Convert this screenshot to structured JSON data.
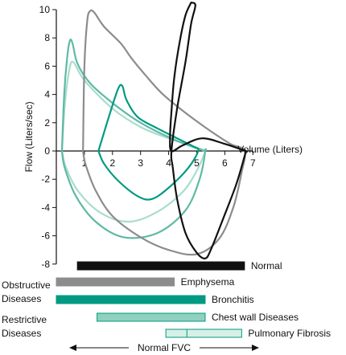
{
  "chart_data": {
    "type": "line",
    "title": "",
    "xlabel": "Volume (Liters)",
    "ylabel": "Flow (Liters/sec)",
    "xlim": [
      0,
      7
    ],
    "ylim": [
      -8,
      10
    ],
    "x_ticks": [
      1,
      2,
      3,
      4,
      5,
      6,
      7
    ],
    "y_ticks": [
      10,
      8,
      6,
      4,
      2,
      0,
      -2,
      -4,
      -6,
      -8
    ],
    "grid": false,
    "series": [
      {
        "name": "Normal",
        "color": "#111111",
        "points": [
          [
            4.8,
            10.5
          ],
          [
            4.6,
            9.6
          ],
          [
            4.4,
            7.8
          ],
          [
            4.2,
            5.2
          ],
          [
            4.1,
            2.8
          ],
          [
            4.05,
            1.0
          ],
          [
            4.1,
            0
          ],
          [
            4.5,
            0.4
          ],
          [
            5.2,
            0.9
          ],
          [
            6.0,
            0.5
          ],
          [
            6.6,
            0.1
          ],
          [
            6.75,
            0
          ],
          [
            6.7,
            -0.4
          ],
          [
            6.4,
            -2.4
          ],
          [
            5.9,
            -5.0
          ],
          [
            5.5,
            -7.0
          ],
          [
            5.3,
            -7.6
          ],
          [
            5.0,
            -7.2
          ],
          [
            4.6,
            -5.8
          ],
          [
            4.3,
            -3.4
          ],
          [
            4.15,
            -1.2
          ],
          [
            4.1,
            0
          ],
          [
            4.3,
            3.0
          ],
          [
            4.6,
            6.3
          ],
          [
            4.8,
            9.0
          ],
          [
            4.95,
            10.3
          ],
          [
            4.8,
            10.5
          ]
        ]
      },
      {
        "name": "Emphysema",
        "color": "#8c8c8c",
        "points": [
          [
            0.95,
            0
          ],
          [
            1.0,
            6.0
          ],
          [
            1.1,
            9.2
          ],
          [
            1.2,
            9.9
          ],
          [
            1.35,
            9.8
          ],
          [
            1.7,
            8.8
          ],
          [
            2.3,
            7.6
          ],
          [
            2.7,
            6.5
          ],
          [
            3.2,
            5.3
          ],
          [
            3.8,
            4.0
          ],
          [
            4.6,
            2.7
          ],
          [
            5.5,
            1.4
          ],
          [
            6.2,
            0.5
          ],
          [
            6.7,
            0
          ],
          [
            6.6,
            -1.5
          ],
          [
            6.3,
            -4.0
          ],
          [
            5.8,
            -6.2
          ],
          [
            5.0,
            -7.3
          ],
          [
            4.0,
            -7.0
          ],
          [
            3.0,
            -6.1
          ],
          [
            2.0,
            -4.6
          ],
          [
            1.4,
            -2.8
          ],
          [
            1.05,
            -1.0
          ],
          [
            0.95,
            0
          ]
        ]
      },
      {
        "name": "Bronchitis",
        "color": "#009a82",
        "points": [
          [
            1.5,
            0
          ],
          [
            1.9,
            2.6
          ],
          [
            2.2,
            4.4
          ],
          [
            2.35,
            4.6
          ],
          [
            2.5,
            3.6
          ],
          [
            2.9,
            2.4
          ],
          [
            3.6,
            1.6
          ],
          [
            4.3,
            0.9
          ],
          [
            4.9,
            0.3
          ],
          [
            5.05,
            0
          ],
          [
            4.7,
            -1.2
          ],
          [
            4.0,
            -2.6
          ],
          [
            3.4,
            -3.4
          ],
          [
            2.9,
            -3.2
          ],
          [
            2.2,
            -2.1
          ],
          [
            1.7,
            -0.9
          ],
          [
            1.5,
            0
          ]
        ]
      },
      {
        "name": "Chest wall Diseases",
        "color": "#5fb9a4",
        "points": [
          [
            0.2,
            0
          ],
          [
            0.28,
            4.0
          ],
          [
            0.38,
            6.5
          ],
          [
            0.48,
            7.8
          ],
          [
            0.58,
            7.6
          ],
          [
            0.75,
            6.2
          ],
          [
            1.2,
            4.8
          ],
          [
            2.0,
            3.4
          ],
          [
            3.0,
            2.0
          ],
          [
            4.2,
            0.8
          ],
          [
            5.2,
            0.05
          ],
          [
            5.3,
            0
          ],
          [
            5.1,
            -2.0
          ],
          [
            4.6,
            -4.2
          ],
          [
            3.6,
            -5.8
          ],
          [
            2.4,
            -6.1
          ],
          [
            1.4,
            -5.0
          ],
          [
            0.7,
            -3.2
          ],
          [
            0.3,
            -1.2
          ],
          [
            0.2,
            0
          ]
        ]
      },
      {
        "name": "Pulmonary Fibrosis",
        "color": "#aadccd",
        "points": [
          [
            0.2,
            0
          ],
          [
            0.3,
            3.2
          ],
          [
            0.45,
            5.6
          ],
          [
            0.6,
            6.3
          ],
          [
            1.0,
            5.0
          ],
          [
            2.0,
            3.0
          ],
          [
            3.0,
            1.7
          ],
          [
            4.0,
            0.9
          ],
          [
            5.2,
            0.1
          ],
          [
            5.3,
            0
          ],
          [
            5.0,
            -1.4
          ],
          [
            4.5,
            -2.9
          ],
          [
            3.6,
            -4.3
          ],
          [
            2.6,
            -5.0
          ],
          [
            1.6,
            -4.4
          ],
          [
            0.8,
            -2.9
          ],
          [
            0.35,
            -1.2
          ],
          [
            0.2,
            0
          ]
        ]
      }
    ],
    "fvc_bars": [
      {
        "label": "Normal",
        "start": 0.75,
        "end": 6.7,
        "fill": "#111111",
        "stroke": "#111111",
        "divider": null
      },
      {
        "label": "Emphysema",
        "start": 0.0,
        "end": 4.2,
        "fill": "#8c8c8c",
        "stroke": "#8c8c8c",
        "divider": null
      },
      {
        "label": "Bronchitis",
        "start": 0.0,
        "end": 5.3,
        "fill": "#009a82",
        "stroke": "#009a82",
        "divider": null
      },
      {
        "label": "Chest wall Diseases",
        "start": 1.45,
        "end": 5.3,
        "fill": "#8fd0bf",
        "stroke": "#009a82",
        "divider": null
      },
      {
        "label": "Pulmonary Fibrosis",
        "start": 3.9,
        "end": 6.6,
        "fill": "#d6efe7",
        "stroke": "#009a82",
        "divider": 4.65
      }
    ],
    "group_labels": [
      {
        "lines": [
          "Obstructive",
          "Diseases"
        ]
      },
      {
        "lines": [
          "Restrictive",
          "Diseases"
        ]
      }
    ],
    "fvc_axis_label": "Normal FVC"
  }
}
